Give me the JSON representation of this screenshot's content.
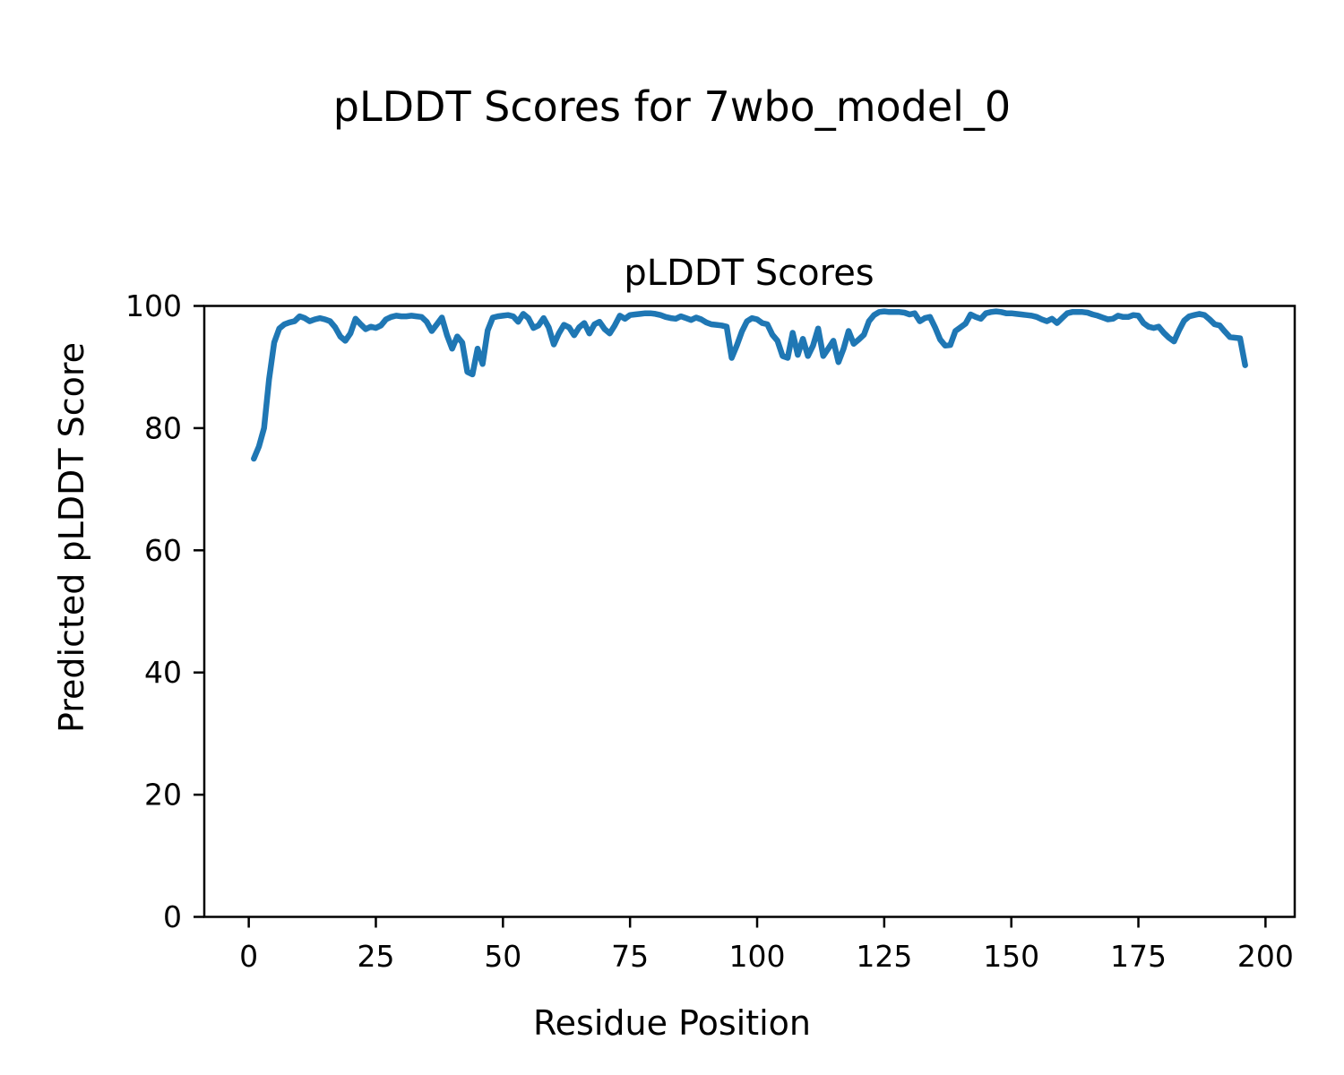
{
  "figure": {
    "suptitle": "pLDDT Scores for 7wbo_model_0"
  },
  "chart_data": {
    "type": "line",
    "title": "pLDDT Scores",
    "xlabel": "Residue Position",
    "ylabel": "Predicted pLDDT Score",
    "xlim": [
      -8.75,
      205.75
    ],
    "ylim": [
      0,
      100
    ],
    "xticks": [
      0,
      25,
      50,
      75,
      100,
      125,
      150,
      175,
      200
    ],
    "yticks": [
      0,
      20,
      40,
      60,
      80,
      100
    ],
    "grid": false,
    "legend": "none",
    "line_color": "#1f77b4",
    "line_width": 6.5,
    "series": [
      {
        "name": "pLDDT",
        "x_start": 1,
        "x_step": 1,
        "y": [
          75.0,
          77.0,
          80.0,
          88.0,
          94.0,
          96.3,
          97.0,
          97.3,
          97.5,
          98.3,
          98.0,
          97.5,
          97.8,
          98.0,
          97.8,
          97.5,
          96.5,
          95.0,
          94.3,
          95.5,
          97.9,
          97.0,
          96.2,
          96.6,
          96.4,
          96.8,
          97.8,
          98.2,
          98.4,
          98.3,
          98.3,
          98.4,
          98.3,
          98.2,
          97.4,
          95.9,
          97.0,
          98.1,
          95.2,
          93.0,
          95.0,
          94.0,
          89.2,
          88.8,
          93.0,
          90.5,
          96.0,
          98.1,
          98.3,
          98.4,
          98.5,
          98.3,
          97.4,
          98.7,
          98.0,
          96.4,
          96.8,
          98.0,
          96.5,
          93.7,
          95.5,
          96.9,
          96.5,
          95.2,
          96.5,
          97.2,
          95.5,
          97.0,
          97.4,
          96.2,
          95.5,
          96.8,
          98.4,
          97.9,
          98.5,
          98.6,
          98.7,
          98.8,
          98.8,
          98.7,
          98.5,
          98.2,
          98.0,
          97.9,
          98.3,
          98.0,
          97.7,
          98.1,
          97.8,
          97.3,
          97.0,
          96.9,
          96.8,
          96.6,
          91.5,
          93.5,
          95.8,
          97.5,
          98.0,
          97.8,
          97.2,
          97.0,
          95.3,
          94.3,
          91.8,
          91.5,
          95.6,
          92.0,
          94.6,
          91.8,
          93.5,
          96.3,
          91.8,
          93.0,
          94.3,
          90.8,
          93.0,
          95.9,
          93.8,
          94.5,
          95.3,
          97.5,
          98.5,
          99.0,
          99.1,
          99.0,
          99.0,
          99.0,
          98.9,
          98.6,
          98.8,
          97.5,
          98.0,
          98.2,
          96.5,
          94.5,
          93.5,
          93.6,
          95.9,
          96.5,
          97.1,
          98.6,
          98.2,
          97.9,
          98.8,
          99.0,
          99.1,
          99.0,
          98.8,
          98.8,
          98.7,
          98.6,
          98.5,
          98.4,
          98.2,
          97.8,
          97.5,
          97.9,
          97.2,
          98.0,
          98.8,
          99.0,
          99.0,
          99.0,
          98.9,
          98.6,
          98.4,
          98.1,
          97.8,
          97.9,
          98.4,
          98.2,
          98.2,
          98.5,
          98.4,
          97.2,
          96.6,
          96.4,
          96.6,
          95.6,
          94.8,
          94.2,
          96.0,
          97.6,
          98.3,
          98.5,
          98.7,
          98.5,
          97.8,
          97.0,
          96.8,
          95.8,
          94.9,
          94.8,
          94.7,
          90.3
        ]
      }
    ]
  }
}
